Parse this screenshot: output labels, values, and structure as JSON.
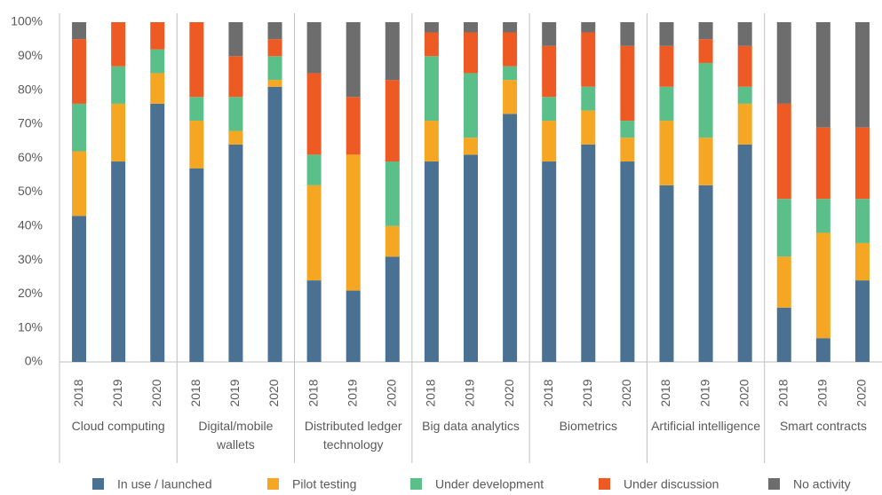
{
  "chart_data": {
    "type": "stacked_bar",
    "groups": [
      "Cloud computing",
      "Digital/mobile wallets",
      "Distributed ledger technology",
      "Big data analytics",
      "Biometrics",
      "Artificial intelligence",
      "Smart contracts"
    ],
    "categories": [
      "2018",
      "2019",
      "2020",
      "2018",
      "2019",
      "2020",
      "2018",
      "2019",
      "2020",
      "2018",
      "2019",
      "2020",
      "2018",
      "2019",
      "2020",
      "2018",
      "2019",
      "2020",
      "2018",
      "2019",
      "2020"
    ],
    "series": [
      {
        "name": "In use / launched",
        "color": "#4a7191",
        "values": [
          43,
          59,
          76,
          57,
          64,
          81,
          24,
          21,
          31,
          59,
          61,
          73,
          59,
          64,
          59,
          52,
          52,
          64,
          16,
          7,
          24
        ]
      },
      {
        "name": "Pilot testing",
        "color": "#f5a623",
        "values": [
          19,
          17,
          9,
          14,
          4,
          2,
          28,
          40,
          9,
          12,
          5,
          10,
          12,
          10,
          7,
          19,
          14,
          12,
          15,
          31,
          11
        ]
      },
      {
        "name": "Under development",
        "color": "#5bbf8a",
        "values": [
          14,
          11,
          7,
          7,
          10,
          7,
          9,
          0,
          19,
          19,
          19,
          4,
          7,
          7,
          5,
          10,
          22,
          5,
          17,
          10,
          13
        ]
      },
      {
        "name": "Under discussion",
        "color": "#ee5a24",
        "values": [
          19,
          13,
          8,
          22,
          12,
          5,
          24,
          17,
          24,
          7,
          12,
          10,
          15,
          16,
          22,
          12,
          7,
          12,
          28,
          21,
          21
        ]
      },
      {
        "name": "No activity",
        "color": "#6d6d6d",
        "values": [
          5,
          0,
          0,
          0,
          10,
          5,
          15,
          22,
          17,
          3,
          3,
          3,
          7,
          3,
          7,
          7,
          5,
          7,
          24,
          31,
          31
        ]
      }
    ],
    "ylim": [
      0,
      100
    ],
    "yticks": [
      {
        "value": 0,
        "label": "0%"
      },
      {
        "value": 10,
        "label": "10%"
      },
      {
        "value": 20,
        "label": "20%"
      },
      {
        "value": 30,
        "label": "30%"
      },
      {
        "value": 40,
        "label": "40%"
      },
      {
        "value": 50,
        "label": "50%"
      },
      {
        "value": 60,
        "label": "60%"
      },
      {
        "value": 70,
        "label": "70%"
      },
      {
        "value": 80,
        "label": "80%"
      },
      {
        "value": 90,
        "label": "90%"
      },
      {
        "value": 100,
        "label": "100%"
      }
    ],
    "grid": false,
    "legend": "bottom"
  }
}
